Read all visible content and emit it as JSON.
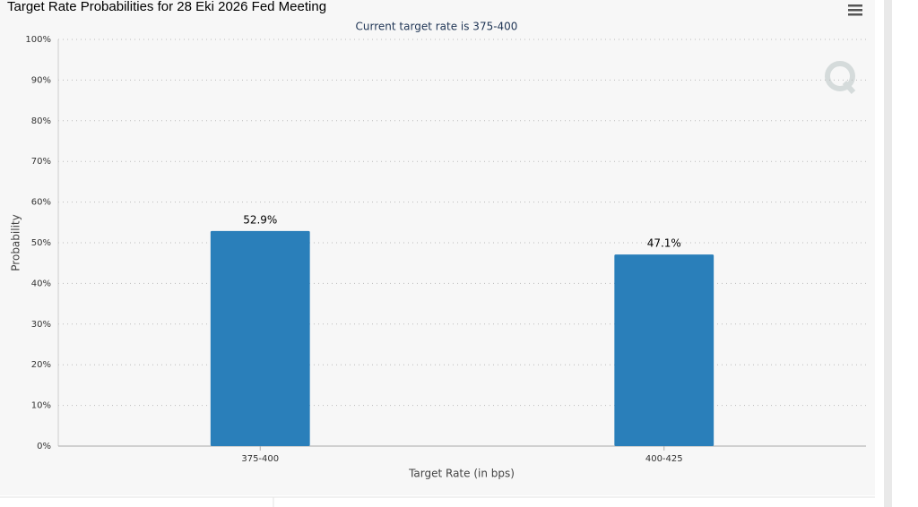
{
  "chart_data": {
    "type": "bar",
    "title": "Target Rate Probabilities for 28 Eki 2026 Fed Meeting",
    "subtitle": "Current target rate is 375-400",
    "x_label": "Target Rate (in bps)",
    "y_label": "Probability",
    "categories": [
      "375-400",
      "400-425"
    ],
    "values": [
      52.9,
      47.1
    ],
    "value_labels": [
      "52.9%",
      "47.1%"
    ],
    "color": "#2a7fba",
    "ylim": [
      0,
      100
    ],
    "yticks": [
      {
        "value": 0,
        "label": "0%"
      },
      {
        "value": 10,
        "label": "10%"
      },
      {
        "value": 20,
        "label": "20%"
      },
      {
        "value": 30,
        "label": "30%"
      },
      {
        "value": 40,
        "label": "40%"
      },
      {
        "value": 50,
        "label": "50%"
      },
      {
        "value": 60,
        "label": "60%"
      },
      {
        "value": 70,
        "label": "70%"
      },
      {
        "value": 80,
        "label": "80%"
      },
      {
        "value": 90,
        "label": "90%"
      },
      {
        "value": 100,
        "label": "100%"
      }
    ],
    "grid": true
  }
}
